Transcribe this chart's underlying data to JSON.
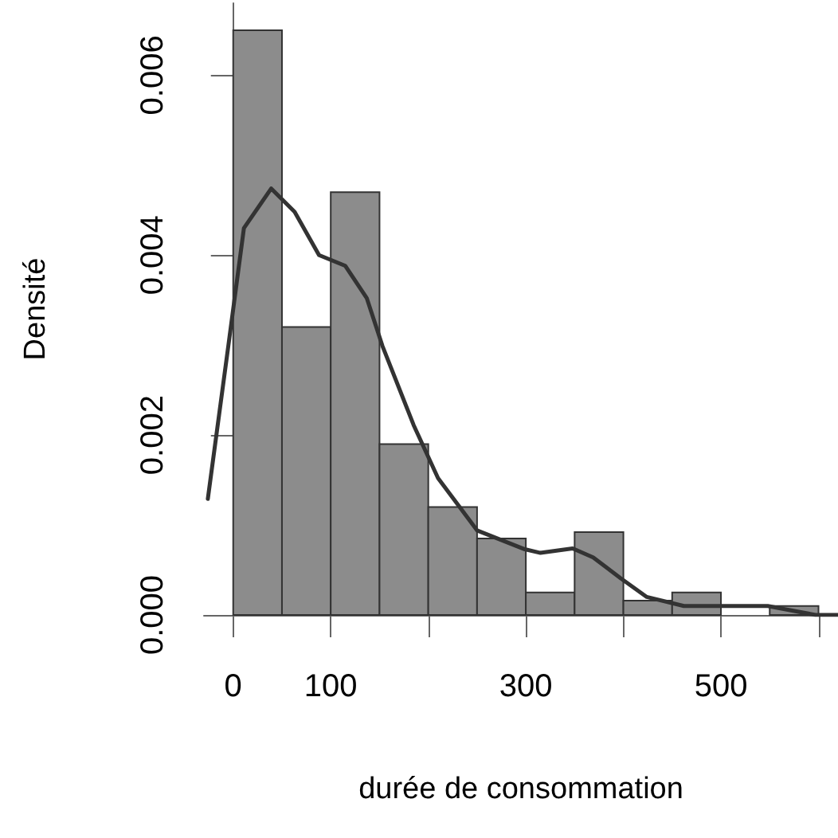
{
  "chart_data": {
    "type": "histogram",
    "xlabel": "durée de consommation",
    "ylabel": "Densité",
    "xlim": [
      -30,
      620
    ],
    "ylim": [
      0,
      0.0068
    ],
    "xticks": [
      0,
      100,
      {
        "value": 200,
        "label": null
      },
      300,
      {
        "value": 400,
        "label": null
      },
      500,
      {
        "value": 600,
        "label": null
      }
    ],
    "yticks": [
      {
        "value": 0,
        "label": "0.000"
      },
      {
        "value": 0.002,
        "label": "0.002"
      },
      {
        "value": 0.004,
        "label": "0.004"
      },
      {
        "value": 0.006,
        "label": "0.006"
      }
    ],
    "grid": false,
    "series": [
      {
        "color": "#8c8c8c",
        "bins": [
          0,
          50,
          100,
          150,
          200,
          250,
          300,
          350,
          400,
          450,
          500,
          550,
          600
        ],
        "values": [
          0.0065,
          0.0032,
          0.0047,
          0.0019,
          0.0012,
          0.00085,
          0.00025,
          0.00092,
          0.00016,
          0.00025,
          0,
          0.0001
        ]
      },
      {
        "type": "line",
        "color": "#333333",
        "line_style": "solid",
        "marker": "none",
        "x": [
          -26,
          -5,
          11,
          39,
          63,
          88,
          115,
          137,
          153,
          185,
          210,
          250,
          299,
          315,
          348,
          369,
          397,
          424,
          462,
          511,
          548,
          597,
          620
        ],
        "values": [
          0.00129,
          0.00299,
          0.0043,
          0.00474,
          0.00448,
          0.004,
          0.00388,
          0.00352,
          0.00299,
          0.00211,
          0.00152,
          0.00094,
          0.00073,
          0.00069,
          0.00074,
          0.00064,
          0.00041,
          0.0002,
          0.0001,
          0.0001,
          0.0001,
          0,
          0
        ]
      }
    ]
  }
}
